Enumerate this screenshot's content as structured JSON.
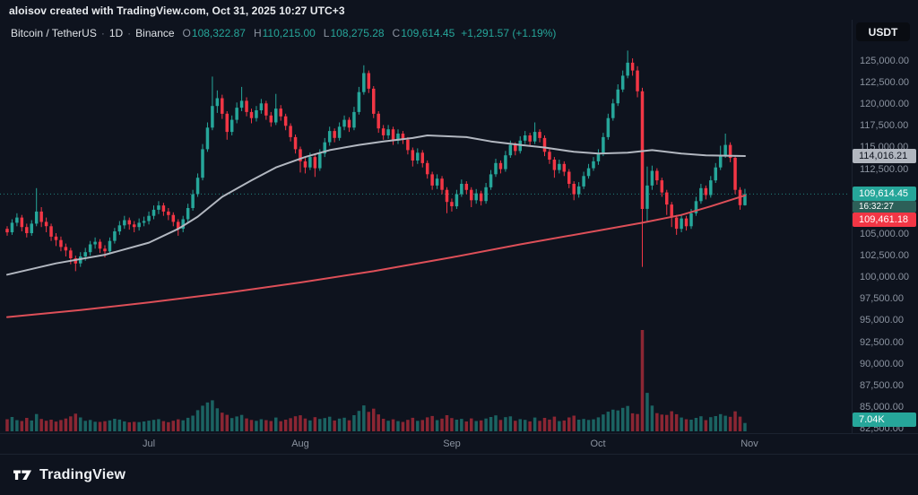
{
  "attribution": "aloisov created with TradingView.com, Oct 31, 2025 10:27 UTC+3",
  "toolbar": {
    "currency_button": "USDT"
  },
  "legend": {
    "symbol": "Bitcoin / TetherUS",
    "dot": "·",
    "interval": "1D",
    "exchange": "Binance",
    "ohlc": {
      "o_label": "O",
      "o": "108,322.87",
      "h_label": "H",
      "h": "110,215.00",
      "l_label": "L",
      "l": "108,275.28",
      "c_label": "C",
      "c": "109,614.45",
      "change": "+1,291.57 (+1.19%)"
    }
  },
  "price_axis": {
    "ticks": [
      {
        "label": "125,000.00",
        "value": 125000
      },
      {
        "label": "122,500.00",
        "value": 122500
      },
      {
        "label": "120,000.00",
        "value": 120000
      },
      {
        "label": "117,500.00",
        "value": 117500
      },
      {
        "label": "115,000.00",
        "value": 115000
      },
      {
        "label": "112,500.00",
        "value": 112500
      },
      {
        "label": "110,000.00",
        "value": 110000
      },
      {
        "label": "107,500.00",
        "value": 107500
      },
      {
        "label": "105,000.00",
        "value": 105000
      },
      {
        "label": "102,500.00",
        "value": 102500
      },
      {
        "label": "100,000.00",
        "value": 100000
      },
      {
        "label": "97,500.00",
        "value": 97500
      },
      {
        "label": "95,000.00",
        "value": 95000
      },
      {
        "label": "92,500.00",
        "value": 92500
      },
      {
        "label": "90,000.00",
        "value": 90000
      },
      {
        "label": "87,500.00",
        "value": 87500
      },
      {
        "label": "85,000.00",
        "value": 85000
      },
      {
        "label": "82,500.00",
        "value": 82500
      }
    ],
    "markers": {
      "ma_fast": {
        "text": "114,016.21",
        "value": 114016.21
      },
      "last": {
        "text": "109,614.45",
        "value": 109614.45
      },
      "countdown": {
        "text": "16:32:27"
      },
      "ma_slow": {
        "text": "109,461.18",
        "value": 109461.18
      },
      "volume": {
        "text": "7.04K"
      }
    }
  },
  "time_axis": {
    "months": [
      {
        "label": "Jul",
        "index": 29
      },
      {
        "label": "Aug",
        "index": 60
      },
      {
        "label": "Sep",
        "index": 91
      },
      {
        "label": "Oct",
        "index": 121
      },
      {
        "label": "Nov",
        "index": 152
      }
    ]
  },
  "footer": {
    "brand": "TradingView"
  },
  "chart_data": {
    "type": "candlestick",
    "symbol": "Bitcoin / TetherUS (Binance)",
    "interval": "1D",
    "ylim": [
      82500,
      126500
    ],
    "last_close": 109614.45,
    "change": 1291.57,
    "change_pct": 1.19,
    "colors": {
      "up": "#26a69a",
      "down": "#f23645",
      "ma_fast": "#b2b7c0",
      "ma_slow": "#dd4f58",
      "volume_up": "rgba(38,166,154,0.55)",
      "volume_down": "rgba(242,54,69,0.55)",
      "countdown_bg": "#2d5f58",
      "marker_text_dark": "#0e131e"
    },
    "candles": [
      [
        105600,
        105900,
        104800,
        105200,
        10.2
      ],
      [
        105200,
        106700,
        104900,
        106300,
        12.1
      ],
      [
        106300,
        107400,
        105900,
        106900,
        9.4
      ],
      [
        106900,
        107200,
        105300,
        105800,
        8.7
      ],
      [
        105800,
        106200,
        104600,
        105100,
        11.3
      ],
      [
        105100,
        106600,
        104800,
        106200,
        9.1
      ],
      [
        106200,
        110300,
        105900,
        107600,
        14.6
      ],
      [
        107600,
        108100,
        105800,
        106400,
        10.4
      ],
      [
        106400,
        106900,
        105200,
        105900,
        8.9
      ],
      [
        105900,
        106200,
        104200,
        104700,
        9.8
      ],
      [
        104700,
        105100,
        103600,
        104300,
        8.2
      ],
      [
        104300,
        104700,
        103000,
        103500,
        9.5
      ],
      [
        103500,
        103900,
        102400,
        103100,
        10.8
      ],
      [
        103100,
        103400,
        101500,
        102200,
        12.6
      ],
      [
        102200,
        102500,
        100700,
        101600,
        14.9
      ],
      [
        101600,
        102900,
        101200,
        102400,
        11.7
      ],
      [
        102400,
        103400,
        101900,
        102900,
        8.8
      ],
      [
        102900,
        104200,
        102500,
        103800,
        9.6
      ],
      [
        103800,
        104600,
        103300,
        104100,
        8.1
      ],
      [
        104100,
        104400,
        102800,
        103300,
        7.9
      ],
      [
        103300,
        103700,
        102300,
        103000,
        8.5
      ],
      [
        103000,
        104600,
        102700,
        104200,
        9.2
      ],
      [
        104200,
        105700,
        103900,
        105300,
        10.6
      ],
      [
        105300,
        106500,
        104900,
        106000,
        9.9
      ],
      [
        106000,
        107100,
        105600,
        106600,
        8.4
      ],
      [
        106600,
        106900,
        105500,
        106100,
        7.6
      ],
      [
        106100,
        106500,
        105200,
        105800,
        8.0
      ],
      [
        105800,
        106800,
        105400,
        106300,
        7.8
      ],
      [
        106300,
        107000,
        105900,
        106500,
        8.3
      ],
      [
        106500,
        107600,
        106100,
        107100,
        9.0
      ],
      [
        107100,
        108300,
        106700,
        107800,
        9.7
      ],
      [
        107800,
        108800,
        107300,
        108300,
        10.3
      ],
      [
        108300,
        108600,
        107100,
        107600,
        8.6
      ],
      [
        107600,
        108000,
        106600,
        107200,
        7.7
      ],
      [
        107200,
        107500,
        105900,
        106400,
        8.9
      ],
      [
        106400,
        106700,
        104800,
        105600,
        10.1
      ],
      [
        105600,
        107100,
        105200,
        106700,
        9.3
      ],
      [
        106700,
        108500,
        106300,
        108000,
        11.4
      ],
      [
        108000,
        110100,
        107700,
        109600,
        13.2
      ],
      [
        109600,
        112000,
        109300,
        111500,
        17.8
      ],
      [
        111500,
        115400,
        111200,
        114800,
        21.6
      ],
      [
        114800,
        117900,
        114500,
        117300,
        24.3
      ],
      [
        117300,
        123200,
        117000,
        119800,
        26.1
      ],
      [
        119800,
        121600,
        119000,
        120700,
        19.4
      ],
      [
        120700,
        121100,
        118300,
        118900,
        15.7
      ],
      [
        118900,
        119200,
        115900,
        116800,
        13.9
      ],
      [
        116800,
        118700,
        116400,
        118200,
        11.2
      ],
      [
        118200,
        120200,
        117800,
        119600,
        12.5
      ],
      [
        119600,
        122000,
        119200,
        120400,
        13.8
      ],
      [
        120400,
        120800,
        118600,
        119100,
        10.9
      ],
      [
        119100,
        119500,
        117800,
        118400,
        9.6
      ],
      [
        118400,
        119800,
        118000,
        119300,
        8.8
      ],
      [
        119300,
        120600,
        118900,
        120100,
        10.2
      ],
      [
        120100,
        120400,
        118200,
        118700,
        9.4
      ],
      [
        118700,
        119100,
        117400,
        117900,
        8.7
      ],
      [
        117900,
        121200,
        117600,
        119500,
        11.6
      ],
      [
        119500,
        119900,
        118100,
        118600,
        8.5
      ],
      [
        118600,
        118900,
        117000,
        117500,
        9.8
      ],
      [
        117500,
        117800,
        115700,
        116200,
        11.1
      ],
      [
        116200,
        116500,
        114300,
        114800,
        12.7
      ],
      [
        114800,
        115100,
        112100,
        113400,
        13.5
      ],
      [
        113400,
        113800,
        112000,
        112700,
        10.8
      ],
      [
        112700,
        114400,
        112400,
        113900,
        9.2
      ],
      [
        113900,
        114200,
        111600,
        112600,
        11.9
      ],
      [
        112600,
        114800,
        112300,
        114300,
        10.4
      ],
      [
        114300,
        116100,
        113900,
        115600,
        11.2
      ],
      [
        115600,
        117400,
        115200,
        116900,
        12.3
      ],
      [
        116900,
        117200,
        115600,
        116100,
        9.1
      ],
      [
        116100,
        117900,
        115800,
        117400,
        10.7
      ],
      [
        117400,
        118700,
        117000,
        118200,
        11.5
      ],
      [
        118200,
        118500,
        116800,
        117300,
        9.3
      ],
      [
        117300,
        119700,
        117000,
        119100,
        13.6
      ],
      [
        119100,
        122000,
        118800,
        121400,
        17.2
      ],
      [
        121400,
        124500,
        121100,
        123600,
        21.8
      ],
      [
        123600,
        123900,
        121300,
        121800,
        16.4
      ],
      [
        121800,
        122100,
        118400,
        118900,
        19.1
      ],
      [
        118900,
        119200,
        116700,
        117200,
        14.3
      ],
      [
        117200,
        117600,
        115900,
        116400,
        10.6
      ],
      [
        116400,
        117600,
        116000,
        117100,
        8.9
      ],
      [
        117100,
        117400,
        115300,
        115800,
        10.1
      ],
      [
        115800,
        117100,
        115400,
        116600,
        8.6
      ],
      [
        116600,
        116900,
        115400,
        115900,
        7.9
      ],
      [
        115900,
        116200,
        114200,
        114700,
        9.7
      ],
      [
        114700,
        115000,
        112800,
        113500,
        11.4
      ],
      [
        113500,
        114900,
        113100,
        114400,
        8.8
      ],
      [
        114400,
        114700,
        112700,
        113200,
        9.5
      ],
      [
        113200,
        113500,
        111400,
        111900,
        11.8
      ],
      [
        111900,
        112200,
        110100,
        110600,
        12.9
      ],
      [
        110600,
        111900,
        110200,
        111400,
        9.4
      ],
      [
        111400,
        111700,
        109600,
        110100,
        10.7
      ],
      [
        110100,
        110400,
        107400,
        108700,
        13.6
      ],
      [
        108700,
        109100,
        107600,
        108200,
        11.2
      ],
      [
        108200,
        110100,
        107900,
        109600,
        9.8
      ],
      [
        109600,
        111300,
        109300,
        110800,
        10.5
      ],
      [
        110800,
        111100,
        109600,
        110100,
        8.3
      ],
      [
        110100,
        110400,
        108100,
        108900,
        10.9
      ],
      [
        108900,
        110200,
        108500,
        109700,
        8.7
      ],
      [
        109700,
        110000,
        108300,
        108800,
        9.2
      ],
      [
        108800,
        110900,
        108500,
        110400,
        10.8
      ],
      [
        110400,
        112400,
        110100,
        111900,
        12.1
      ],
      [
        111900,
        113700,
        111600,
        113200,
        13.4
      ],
      [
        113200,
        113500,
        112000,
        112500,
        9.6
      ],
      [
        112500,
        114600,
        112200,
        114100,
        11.9
      ],
      [
        114100,
        115800,
        113800,
        115300,
        12.6
      ],
      [
        115300,
        115600,
        114100,
        114600,
        8.9
      ],
      [
        114600,
        116300,
        114300,
        115800,
        10.3
      ],
      [
        115800,
        116900,
        115400,
        116400,
        9.7
      ],
      [
        116400,
        116700,
        115200,
        115700,
        8.4
      ],
      [
        115700,
        117900,
        115400,
        116800,
        11.6
      ],
      [
        116800,
        117100,
        115600,
        116100,
        8.8
      ],
      [
        116100,
        116400,
        114000,
        114500,
        11.3
      ],
      [
        114500,
        114800,
        113100,
        113600,
        9.9
      ],
      [
        113600,
        113900,
        111500,
        112400,
        12.4
      ],
      [
        112400,
        113600,
        112000,
        113100,
        8.6
      ],
      [
        113100,
        113400,
        111700,
        112200,
        9.1
      ],
      [
        112200,
        112500,
        110300,
        110800,
        11.7
      ],
      [
        110800,
        111100,
        108900,
        109600,
        13.2
      ],
      [
        109600,
        111000,
        109200,
        110500,
        9.8
      ],
      [
        110500,
        112200,
        110200,
        111700,
        10.4
      ],
      [
        111700,
        113100,
        111400,
        112600,
        9.6
      ],
      [
        112600,
        113900,
        112300,
        113400,
        10.1
      ],
      [
        113400,
        114800,
        113000,
        114300,
        11.8
      ],
      [
        114300,
        116700,
        114000,
        116200,
        14.2
      ],
      [
        116200,
        118900,
        115900,
        118400,
        16.5
      ],
      [
        118400,
        120600,
        118100,
        120100,
        18.3
      ],
      [
        120100,
        122300,
        119800,
        121700,
        17.6
      ],
      [
        121700,
        123900,
        121400,
        123300,
        19.8
      ],
      [
        123300,
        126200,
        123000,
        124800,
        21.4
      ],
      [
        124800,
        125300,
        123300,
        123900,
        15.2
      ],
      [
        123900,
        124400,
        120800,
        121500,
        14.6
      ],
      [
        121500,
        121900,
        101200,
        107900,
        85.3
      ],
      [
        107900,
        112800,
        106500,
        110600,
        32.4
      ],
      [
        110600,
        112900,
        110100,
        112300,
        21.7
      ],
      [
        112300,
        112600,
        110700,
        111200,
        15.3
      ],
      [
        111200,
        111500,
        109300,
        109800,
        14.1
      ],
      [
        109800,
        110100,
        107200,
        108400,
        13.8
      ],
      [
        108400,
        108700,
        105800,
        106900,
        16.9
      ],
      [
        106900,
        107200,
        104900,
        105600,
        14.4
      ],
      [
        105600,
        107300,
        105200,
        106800,
        11.6
      ],
      [
        106800,
        107100,
        105400,
        105900,
        10.2
      ],
      [
        105900,
        107900,
        105600,
        107400,
        9.8
      ],
      [
        107400,
        109300,
        107100,
        108800,
        11.3
      ],
      [
        108800,
        110800,
        108500,
        110300,
        12.7
      ],
      [
        110300,
        110600,
        109000,
        109500,
        9.4
      ],
      [
        109500,
        111700,
        109200,
        111200,
        11.9
      ],
      [
        111200,
        113200,
        110900,
        112700,
        12.8
      ],
      [
        112700,
        115200,
        112400,
        114100,
        14.5
      ],
      [
        114100,
        116600,
        113800,
        115300,
        13.1
      ],
      [
        115300,
        115600,
        113300,
        113800,
        12.2
      ],
      [
        113800,
        114100,
        109600,
        110100,
        16.8
      ],
      [
        110100,
        110400,
        107800,
        108322.87,
        12.4
      ],
      [
        108322.87,
        110215.0,
        108275.28,
        109614.45,
        7.04
      ]
    ],
    "ma_fast_gray": [
      [
        0,
        100300
      ],
      [
        10,
        101600
      ],
      [
        20,
        102600
      ],
      [
        29,
        104000
      ],
      [
        35,
        105600
      ],
      [
        39,
        107000
      ],
      [
        44,
        109300
      ],
      [
        50,
        111200
      ],
      [
        55,
        112700
      ],
      [
        61,
        113900
      ],
      [
        66,
        114700
      ],
      [
        72,
        115300
      ],
      [
        77,
        115700
      ],
      [
        83,
        116100
      ],
      [
        86,
        116400
      ],
      [
        94,
        116200
      ],
      [
        99,
        115700
      ],
      [
        105,
        115300
      ],
      [
        110,
        115000
      ],
      [
        116,
        114500
      ],
      [
        121,
        114300
      ],
      [
        127,
        114400
      ],
      [
        132,
        114700
      ],
      [
        138,
        114300
      ],
      [
        143,
        114100
      ],
      [
        151,
        114016.21
      ]
    ],
    "ma_slow_red": [
      [
        0,
        95400
      ],
      [
        15,
        96200
      ],
      [
        29,
        97100
      ],
      [
        45,
        98200
      ],
      [
        60,
        99400
      ],
      [
        75,
        100700
      ],
      [
        91,
        102300
      ],
      [
        105,
        103800
      ],
      [
        121,
        105400
      ],
      [
        130,
        106300
      ],
      [
        138,
        107200
      ],
      [
        144,
        108200
      ],
      [
        151,
        109461.18
      ]
    ]
  }
}
